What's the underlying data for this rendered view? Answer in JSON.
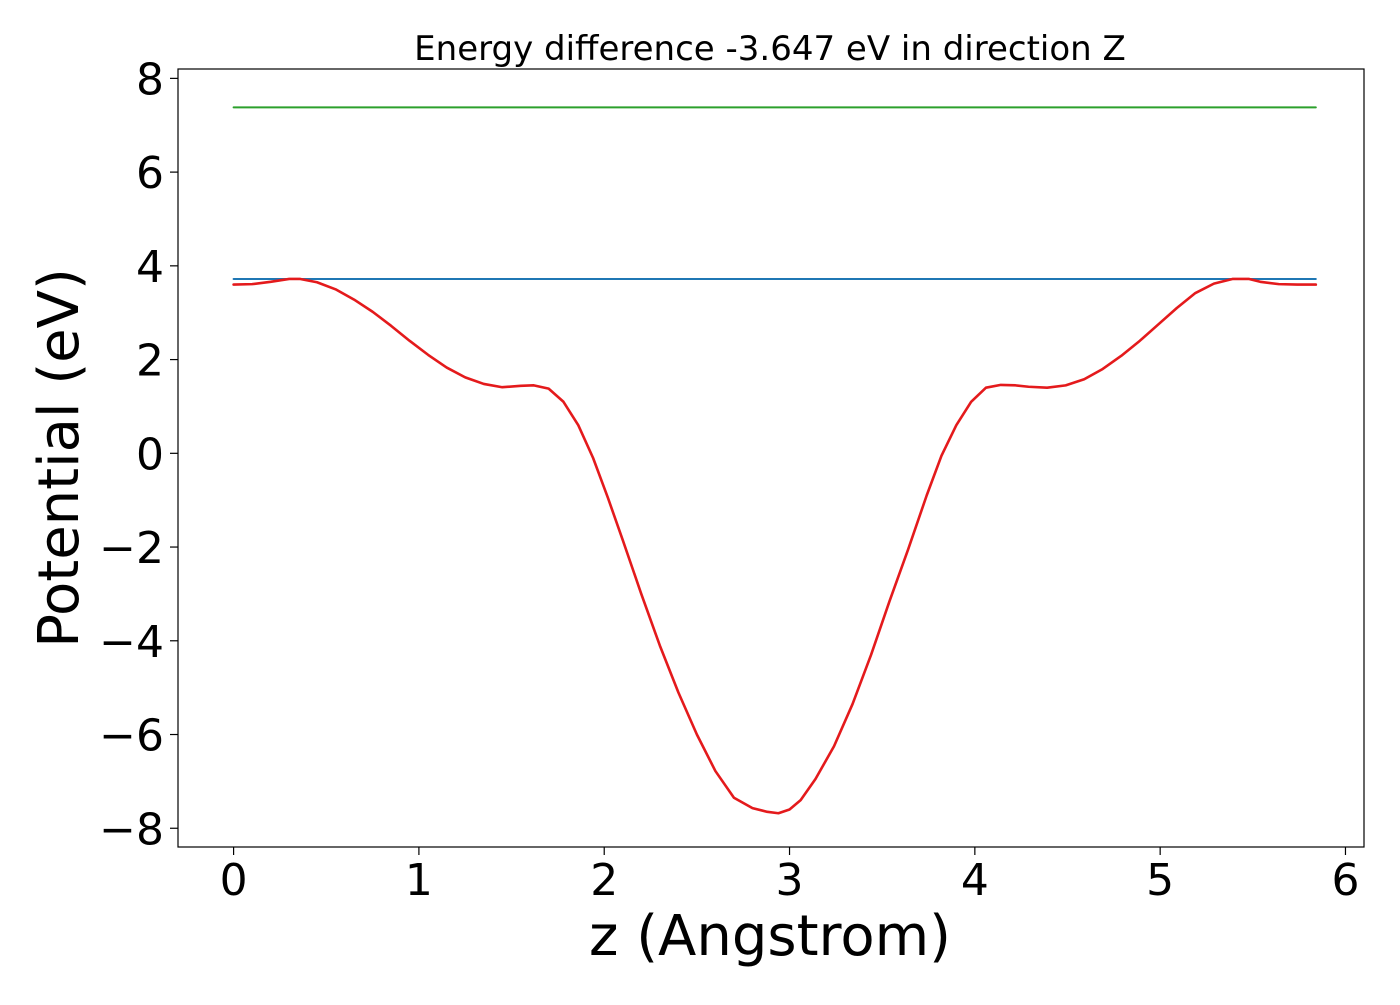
{
  "chart_data": {
    "type": "line",
    "title": "Energy difference -3.647 eV in direction Z",
    "xlabel": "z (Angstrom)",
    "ylabel": "Potential (eV)",
    "xlim": [
      -0.3,
      6.1
    ],
    "ylim": [
      -8.4,
      8.2
    ],
    "xticks": [
      0,
      1,
      2,
      3,
      4,
      5,
      6
    ],
    "yticks": [
      -8,
      -6,
      -4,
      -2,
      0,
      2,
      4,
      6,
      8
    ],
    "xtick_labels": [
      "0",
      "1",
      "2",
      "3",
      "4",
      "5",
      "6"
    ],
    "ytick_labels": [
      "−8",
      "−6",
      "−4",
      "−2",
      "0",
      "2",
      "4",
      "6",
      "8"
    ],
    "grid": false,
    "series": [
      {
        "color": "#2ca02c",
        "x": [
          0.0,
          5.84
        ],
        "y": [
          7.38,
          7.38
        ]
      },
      {
        "color": "#1f77b4",
        "x": [
          0.0,
          5.84
        ],
        "y": [
          3.72,
          3.72
        ]
      },
      {
        "color": "#e41a1c",
        "x": [
          0.0,
          0.1,
          0.2,
          0.3,
          0.36,
          0.45,
          0.55,
          0.65,
          0.75,
          0.85,
          0.95,
          1.05,
          1.15,
          1.25,
          1.35,
          1.45,
          1.55,
          1.62,
          1.7,
          1.78,
          1.86,
          1.94,
          2.02,
          2.1,
          2.2,
          2.3,
          2.4,
          2.5,
          2.6,
          2.7,
          2.8,
          2.88,
          2.94,
          3.0,
          3.06,
          3.14,
          3.24,
          3.34,
          3.44,
          3.54,
          3.64,
          3.74,
          3.82,
          3.9,
          3.98,
          4.06,
          4.14,
          4.22,
          4.29,
          4.39,
          4.49,
          4.59,
          4.69,
          4.79,
          4.89,
          4.99,
          5.09,
          5.19,
          5.29,
          5.39,
          5.48,
          5.54,
          5.64,
          5.74,
          5.84
        ],
        "y": [
          3.6,
          3.61,
          3.66,
          3.72,
          3.72,
          3.65,
          3.5,
          3.28,
          3.02,
          2.72,
          2.4,
          2.1,
          1.83,
          1.62,
          1.48,
          1.41,
          1.44,
          1.45,
          1.38,
          1.1,
          0.6,
          -0.1,
          -0.95,
          -1.85,
          -3.0,
          -4.1,
          -5.1,
          -6.0,
          -6.78,
          -7.35,
          -7.57,
          -7.65,
          -7.68,
          -7.6,
          -7.4,
          -6.95,
          -6.25,
          -5.35,
          -4.3,
          -3.15,
          -2.05,
          -0.9,
          -0.05,
          0.6,
          1.1,
          1.4,
          1.46,
          1.45,
          1.42,
          1.4,
          1.45,
          1.58,
          1.8,
          2.08,
          2.4,
          2.75,
          3.1,
          3.42,
          3.62,
          3.72,
          3.72,
          3.66,
          3.61,
          3.6,
          3.6
        ]
      }
    ]
  }
}
